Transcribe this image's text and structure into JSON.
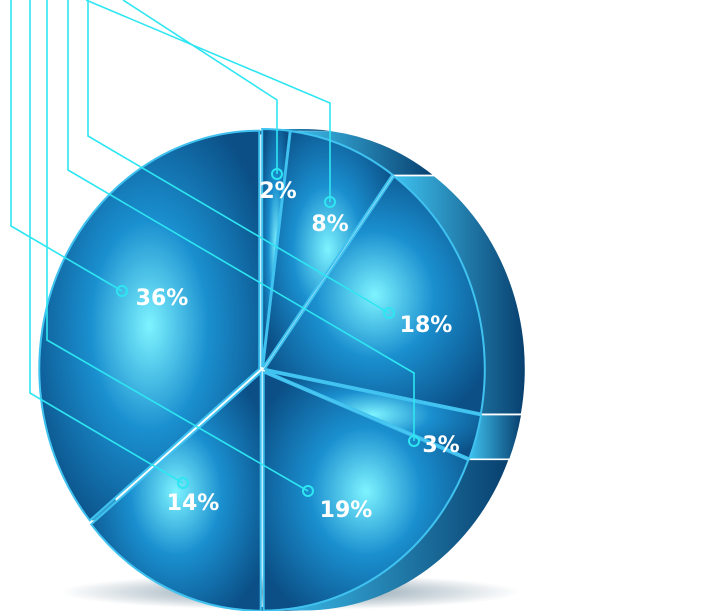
{
  "chart_data": {
    "type": "pie",
    "title": "",
    "style": "3d-exploded-with-callouts",
    "slices": [
      {
        "label": "2%",
        "value": 2
      },
      {
        "label": "8%",
        "value": 8
      },
      {
        "label": "18%",
        "value": 18
      },
      {
        "label": "3%",
        "value": 3
      },
      {
        "label": "19%",
        "value": 19
      },
      {
        "label": "14%",
        "value": 14
      },
      {
        "label": "36%",
        "value": 36
      }
    ],
    "colors": {
      "slice_light": "#7ef3ff",
      "slice_mid": "#1a8fcf",
      "slice_dark": "#0b4f86",
      "side_light": "#3fc2f0",
      "side_dark": "#08406f",
      "callout_line": "#2ee6f2",
      "label_text": "#ffffff"
    }
  }
}
